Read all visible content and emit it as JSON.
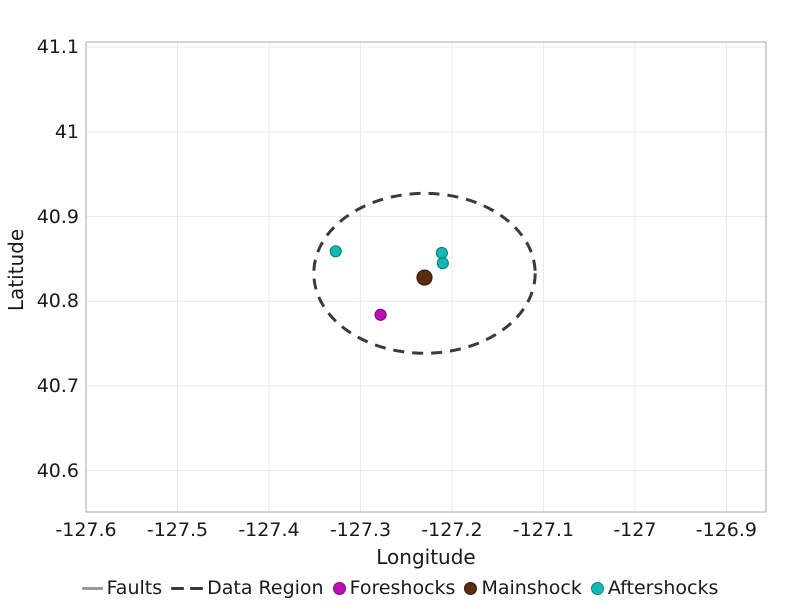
{
  "colors": {
    "background": "#FFFFFF",
    "grid": "#E9E9E9",
    "frame": "#A9A9A9",
    "tick_text": "#1A1A1A"
  },
  "chart_data": {
    "type": "scatter",
    "title": "",
    "xlabel": "Longitude",
    "ylabel": "Latitude",
    "xlim": [
      -127.6,
      -126.8567
    ],
    "ylim": [
      40.5512,
      41.1061
    ],
    "grid": true,
    "legend_position": "bottom",
    "x_ticks": {
      "values": [
        -127.6,
        -127.5,
        -127.4,
        -127.3,
        -127.2,
        -127.1,
        -127.0,
        -126.9
      ],
      "labels": [
        "-127.6",
        "-127.5",
        "-127.4",
        "-127.3",
        "-127.2",
        "-127.1",
        "-127",
        "-126.9"
      ]
    },
    "y_ticks": {
      "values": [
        41.1,
        41.0,
        40.9,
        40.8,
        40.7,
        40.6
      ],
      "labels": [
        "41.1",
        "41",
        "40.9",
        "40.8",
        "40.7",
        "40.6"
      ]
    },
    "series": [
      {
        "name": "Faults",
        "type": "line",
        "color": "#999999",
        "points": []
      },
      {
        "name": "Data Region",
        "type": "ellipse",
        "color": "#3A3A3A",
        "center": [
          -127.23,
          40.833
        ],
        "rx": 0.121,
        "ry": 0.0944,
        "stroke_width": 3,
        "dash": [
          11,
          8
        ]
      },
      {
        "name": "Foreshocks",
        "type": "scatter",
        "fill": "#BB0FB6",
        "stroke": "#7D0A7A",
        "marker_radius": 5.5,
        "marker_stroke_width": 1.2,
        "points": [
          [
            -127.278,
            40.784
          ]
        ]
      },
      {
        "name": "Mainshock",
        "type": "scatter",
        "fill": "#5B2C0E",
        "stroke": "#33190A",
        "marker_radius": 7.5,
        "marker_stroke_width": 1.2,
        "points": [
          [
            -127.23,
            40.828
          ]
        ]
      },
      {
        "name": "Aftershocks",
        "type": "scatter",
        "fill": "#14B8B4",
        "stroke": "#0A8480",
        "marker_radius": 5.5,
        "marker_stroke_width": 1.2,
        "points": [
          [
            -127.327,
            40.859
          ],
          [
            -127.211,
            40.857
          ],
          [
            -127.21,
            40.845
          ]
        ]
      }
    ]
  }
}
